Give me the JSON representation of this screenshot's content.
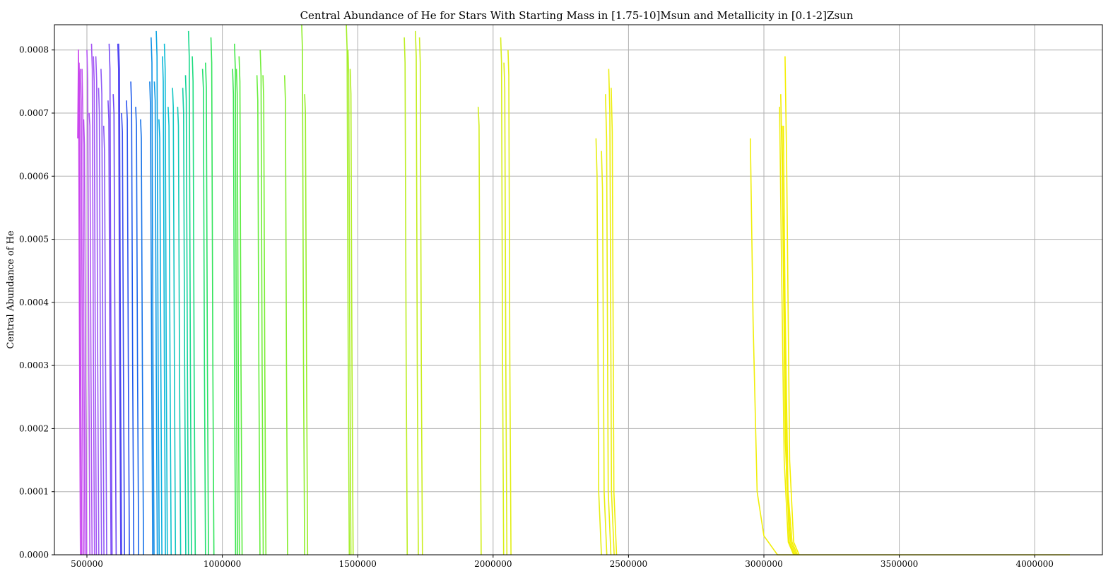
{
  "chart_data": {
    "type": "line",
    "title": "Central Abundance of He for Stars With Starting Mass in [1.75-10]Msun and Metallicity in [0.1-2]Zsun",
    "xlabel": "",
    "ylabel": "Central Abundance of He",
    "xlim": [
      380000,
      4250000
    ],
    "ylim": [
      0,
      0.00084
    ],
    "xticks": [
      500000,
      1000000,
      1500000,
      2000000,
      2500000,
      3000000,
      3500000,
      4000000
    ],
    "xtick_labels": [
      "500000",
      "1000000",
      "1500000",
      "2000000",
      "2500000",
      "3000000",
      "3500000",
      "4000000"
    ],
    "yticks": [
      0,
      0.0001,
      0.0002,
      0.0003,
      0.0004,
      0.0005,
      0.0006,
      0.0007,
      0.0008
    ],
    "ytick_labels": [
      "0.0000",
      "0.0001",
      "0.0002",
      "0.0003",
      "0.0004",
      "0.0005",
      "0.0006",
      "0.0007",
      "0.0008"
    ],
    "grid": true,
    "legend": "none",
    "colormap": "spring-to-yellow (magenta → blue → cyan → green → yellow)",
    "series": [
      {
        "color": "#cc44ee",
        "x": [
          466000,
          469000,
          472000,
          476000
        ],
        "y": [
          0.00066,
          0.0008,
          0.0004,
          0
        ]
      },
      {
        "color": "#c848ee",
        "x": [
          471000,
          473000,
          477000,
          481000
        ],
        "y": [
          0.00078,
          0.00074,
          0.0003,
          0
        ]
      },
      {
        "color": "#c44cf0",
        "x": [
          476000,
          479000,
          483000,
          487000
        ],
        "y": [
          0.00077,
          0.00072,
          0.0003,
          0
        ]
      },
      {
        "color": "#c050f0",
        "x": [
          482000,
          485000,
          489000,
          493000
        ],
        "y": [
          0.00077,
          0.0007,
          0.0003,
          0
        ]
      },
      {
        "color": "#bb52f2",
        "x": [
          488000,
          491000,
          495000,
          499000
        ],
        "y": [
          0.00069,
          0.00065,
          0.0003,
          0
        ]
      },
      {
        "color": "#b454f2",
        "x": [
          500000,
          503000,
          507000,
          511000
        ],
        "y": [
          0.0008,
          0.00075,
          0.0003,
          0
        ]
      },
      {
        "color": "#ae55f3",
        "x": [
          508000,
          511000,
          515000,
          519000
        ],
        "y": [
          0.0007,
          0.00068,
          0.0003,
          0
        ]
      },
      {
        "color": "#a756f4",
        "x": [
          517000,
          520000,
          524000,
          528000
        ],
        "y": [
          0.00081,
          0.00077,
          0.0003,
          0
        ]
      },
      {
        "color": "#a157f4",
        "x": [
          524000,
          527000,
          531000,
          535000
        ],
        "y": [
          0.00079,
          0.00075,
          0.0003,
          0
        ]
      },
      {
        "color": "#9b58f5",
        "x": [
          533000,
          536000,
          540000,
          544000
        ],
        "y": [
          0.00079,
          0.00075,
          0.0003,
          0
        ]
      },
      {
        "color": "#9559f5",
        "x": [
          543000,
          546000,
          550000,
          554000
        ],
        "y": [
          0.00074,
          0.0007,
          0.0003,
          0
        ]
      },
      {
        "color": "#8f5af6",
        "x": [
          552000,
          555000,
          559000,
          563000
        ],
        "y": [
          0.00077,
          0.00073,
          0.0003,
          0
        ]
      },
      {
        "color": "#8a58f6",
        "x": [
          562000,
          565000,
          569000,
          573000
        ],
        "y": [
          0.00068,
          0.00064,
          0.0003,
          0
        ]
      },
      {
        "color": "#8050f6",
        "x": [
          578000,
          581000,
          585000,
          589000
        ],
        "y": [
          0.00072,
          0.00069,
          0.0003,
          0
        ]
      },
      {
        "color": "#7a4cf6",
        "x": [
          582000,
          585000,
          589000,
          593000
        ],
        "y": [
          0.00081,
          0.00077,
          0.0003,
          0
        ]
      },
      {
        "color": "#6f48f6",
        "x": [
          597000,
          600000,
          604000,
          608000
        ],
        "y": [
          0.00073,
          0.0007,
          0.0003,
          0
        ]
      },
      {
        "color": "#5a46f4",
        "x": [
          614000,
          617000,
          621000,
          625000
        ],
        "y": [
          0.00081,
          0.00077,
          0.0003,
          0
        ]
      },
      {
        "color": "#4a46f2",
        "x": [
          617000,
          620000,
          624000,
          628000
        ],
        "y": [
          0.00081,
          0.00077,
          0.0003,
          0
        ]
      },
      {
        "color": "#3a4cf0",
        "x": [
          628000,
          631000,
          635000,
          639000
        ],
        "y": [
          0.0007,
          0.00067,
          0.0003,
          0
        ]
      },
      {
        "color": "#2a52ee",
        "x": [
          646000,
          649000,
          653000,
          657000
        ],
        "y": [
          0.00072,
          0.00069,
          0.0003,
          0
        ]
      },
      {
        "color": "#1e5aec",
        "x": [
          662000,
          665000,
          669000,
          673000
        ],
        "y": [
          0.00075,
          0.00071,
          0.0003,
          0
        ]
      },
      {
        "color": "#1a66ea",
        "x": [
          680000,
          683000,
          687000,
          691000
        ],
        "y": [
          0.00071,
          0.00068,
          0.0003,
          0
        ]
      },
      {
        "color": "#1672e8",
        "x": [
          698000,
          701000,
          705000,
          709000
        ],
        "y": [
          0.00069,
          0.00066,
          0.0003,
          0
        ]
      },
      {
        "color": "#1380e6",
        "x": [
          732000,
          735000,
          739000,
          743000
        ],
        "y": [
          0.00075,
          0.00071,
          0.0003,
          0
        ]
      },
      {
        "color": "#108ee6",
        "x": [
          737000,
          740000,
          744000,
          748000
        ],
        "y": [
          0.00082,
          0.00078,
          0.0003,
          0
        ]
      },
      {
        "color": "#0e9ae4",
        "x": [
          749000,
          752000,
          756000,
          760000
        ],
        "y": [
          0.00075,
          0.00072,
          0.0003,
          0
        ]
      },
      {
        "color": "#0ca4e2",
        "x": [
          756000,
          759000,
          763000,
          767000
        ],
        "y": [
          0.00083,
          0.00079,
          0.0003,
          0
        ]
      },
      {
        "color": "#0aaede",
        "x": [
          766000,
          769000,
          773000,
          777000
        ],
        "y": [
          0.00069,
          0.00066,
          0.0003,
          0
        ]
      },
      {
        "color": "#0ab6da",
        "x": [
          779000,
          782000,
          786000,
          790000
        ],
        "y": [
          0.00079,
          0.00075,
          0.0003,
          0
        ]
      },
      {
        "color": "#0cbcd4",
        "x": [
          786000,
          789000,
          793000,
          797000
        ],
        "y": [
          0.00081,
          0.00077,
          0.0003,
          0
        ]
      },
      {
        "color": "#0ec2cc",
        "x": [
          800000,
          803000,
          807000,
          811000
        ],
        "y": [
          0.00071,
          0.00068,
          0.0003,
          0
        ]
      },
      {
        "color": "#10c6c2",
        "x": [
          816000,
          819000,
          823000,
          827000
        ],
        "y": [
          0.00074,
          0.00071,
          0.0003,
          0
        ]
      },
      {
        "color": "#12cab6",
        "x": [
          835000,
          838000,
          842000,
          846000
        ],
        "y": [
          0.00071,
          0.00068,
          0.0003,
          0
        ]
      },
      {
        "color": "#14d0a8",
        "x": [
          854000,
          857000,
          861000,
          865000
        ],
        "y": [
          0.00074,
          0.0007,
          0.0003,
          0
        ]
      },
      {
        "color": "#16d49a",
        "x": [
          864000,
          867000,
          871000,
          875000
        ],
        "y": [
          0.00076,
          0.00072,
          0.0003,
          0
        ]
      },
      {
        "color": "#18d88c",
        "x": [
          875000,
          878000,
          882000,
          886000
        ],
        "y": [
          0.00083,
          0.00079,
          0.0003,
          0
        ]
      },
      {
        "color": "#1cdc7e",
        "x": [
          889000,
          892000,
          896000,
          900000
        ],
        "y": [
          0.00079,
          0.00075,
          0.0003,
          0
        ]
      },
      {
        "color": "#22e070",
        "x": [
          927000,
          930000,
          934000,
          938000
        ],
        "y": [
          0.00077,
          0.00074,
          0.0003,
          0
        ]
      },
      {
        "color": "#2ae264",
        "x": [
          938000,
          941000,
          945000,
          949000
        ],
        "y": [
          0.00078,
          0.00074,
          0.0003,
          0
        ]
      },
      {
        "color": "#32e45a",
        "x": [
          958000,
          961000,
          965000,
          969000
        ],
        "y": [
          0.00082,
          0.00078,
          0.0003,
          0
        ]
      },
      {
        "color": "#3ce652",
        "x": [
          1038000,
          1041000,
          1045000,
          1049000
        ],
        "y": [
          0.00077,
          0.00073,
          0.0003,
          0
        ]
      },
      {
        "color": "#46e84c",
        "x": [
          1045000,
          1048000,
          1052000,
          1056000
        ],
        "y": [
          0.00081,
          0.00077,
          0.0003,
          0
        ]
      },
      {
        "color": "#52ea46",
        "x": [
          1052000,
          1055000,
          1059000,
          1063000
        ],
        "y": [
          0.00077,
          0.00073,
          0.0003,
          0
        ]
      },
      {
        "color": "#5cec40",
        "x": [
          1062000,
          1065000,
          1069000,
          1073000
        ],
        "y": [
          0.00079,
          0.00075,
          0.0003,
          0
        ]
      },
      {
        "color": "#66ee3c",
        "x": [
          1128000,
          1131000,
          1135000,
          1139000
        ],
        "y": [
          0.00076,
          0.00072,
          0.0003,
          0
        ]
      },
      {
        "color": "#70ee38",
        "x": [
          1140000,
          1143000,
          1147000,
          1151000
        ],
        "y": [
          0.0008,
          0.00076,
          0.0003,
          0
        ]
      },
      {
        "color": "#7aee34",
        "x": [
          1150000,
          1153000,
          1157000,
          1161000
        ],
        "y": [
          0.00076,
          0.00072,
          0.0003,
          0
        ]
      },
      {
        "color": "#86ee30",
        "x": [
          1230000,
          1233000,
          1237000,
          1241000
        ],
        "y": [
          0.00076,
          0.00072,
          0.0003,
          0
        ]
      },
      {
        "color": "#90ee2c",
        "x": [
          1293000,
          1296000,
          1300000,
          1304000
        ],
        "y": [
          0.00084,
          0.0008,
          0.0003,
          0
        ]
      },
      {
        "color": "#98ee2a",
        "x": [
          1304000,
          1307000,
          1311000,
          1315000
        ],
        "y": [
          0.00073,
          0.0007,
          0.0003,
          0
        ]
      },
      {
        "color": "#a2ee28",
        "x": [
          1458000,
          1461000,
          1465000,
          1469000
        ],
        "y": [
          0.00084,
          0.0008,
          0.0003,
          0
        ]
      },
      {
        "color": "#aaee26",
        "x": [
          1464000,
          1467000,
          1471000,
          1475000
        ],
        "y": [
          0.0008,
          0.00076,
          0.0003,
          0
        ]
      },
      {
        "color": "#b2ee24",
        "x": [
          1472000,
          1475000,
          1479000,
          1483000
        ],
        "y": [
          0.00077,
          0.00073,
          0.0003,
          0
        ]
      },
      {
        "color": "#bcee22",
        "x": [
          1672000,
          1675000,
          1679000,
          1683000
        ],
        "y": [
          0.00082,
          0.00078,
          0.0003,
          0
        ]
      },
      {
        "color": "#c4ee20",
        "x": [
          1713000,
          1716000,
          1720000,
          1724000
        ],
        "y": [
          0.00083,
          0.00079,
          0.0003,
          0
        ]
      },
      {
        "color": "#cbee1e",
        "x": [
          1728000,
          1731000,
          1735000,
          1739000
        ],
        "y": [
          0.00082,
          0.00078,
          0.0003,
          0
        ]
      },
      {
        "color": "#d2ee1c",
        "x": [
          1945000,
          1948000,
          1952000,
          1956000
        ],
        "y": [
          0.00071,
          0.00068,
          0.0003,
          0
        ]
      },
      {
        "color": "#d8ee1a",
        "x": [
          2028000,
          2031000,
          2035000,
          2039000
        ],
        "y": [
          0.00082,
          0.00078,
          0.0003,
          0
        ]
      },
      {
        "color": "#deee18",
        "x": [
          2040000,
          2043000,
          2047000,
          2051000
        ],
        "y": [
          0.00078,
          0.00074,
          0.0003,
          0
        ]
      },
      {
        "color": "#e2ee16",
        "x": [
          2055000,
          2058000,
          2062000,
          2066000
        ],
        "y": [
          0.0008,
          0.00076,
          0.0003,
          0
        ]
      },
      {
        "color": "#e6ee14",
        "x": [
          2380000,
          2384000,
          2390000,
          2400000
        ],
        "y": [
          0.00066,
          0.0006,
          0.0001,
          0
        ]
      },
      {
        "color": "#e8ee12",
        "x": [
          2400000,
          2404000,
          2410000,
          2420000
        ],
        "y": [
          0.00064,
          0.00058,
          0.0001,
          0
        ]
      },
      {
        "color": "#eaee10",
        "x": [
          2415000,
          2419000,
          2425000,
          2435000
        ],
        "y": [
          0.00073,
          0.00066,
          0.0001,
          0
        ]
      },
      {
        "color": "#ecee0e",
        "x": [
          2427000,
          2431000,
          2437000,
          2447000
        ],
        "y": [
          0.00077,
          0.0007,
          0.0001,
          0
        ]
      },
      {
        "color": "#eeee0c",
        "x": [
          2436000,
          2440000,
          2446000,
          2456000
        ],
        "y": [
          0.00074,
          0.00067,
          0.0001,
          0
        ]
      },
      {
        "color": "#f0ee0a",
        "x": [
          2950000,
          2960000,
          2975000,
          3000000,
          3050000,
          4130000
        ],
        "y": [
          0.00066,
          0.00037,
          0.0001,
          3e-05,
          0,
          0
        ]
      },
      {
        "color": "#f0ee08",
        "x": [
          3058000,
          3064000,
          3075000,
          3090000,
          3110000
        ],
        "y": [
          0.00071,
          0.0005,
          0.00015,
          2e-05,
          0
        ]
      },
      {
        "color": "#f2ee06",
        "x": [
          3062000,
          3068000,
          3079000,
          3094000,
          3114000
        ],
        "y": [
          0.00073,
          0.0006,
          0.00018,
          2e-05,
          0
        ]
      },
      {
        "color": "#f2ee04",
        "x": [
          3067000,
          3073000,
          3084000,
          3099000,
          3119000
        ],
        "y": [
          0.00068,
          0.00045,
          0.00012,
          2e-05,
          0
        ]
      },
      {
        "color": "#f4ee02",
        "x": [
          3072000,
          3078000,
          3089000,
          3104000,
          3124000
        ],
        "y": [
          0.00068,
          0.0004,
          0.0001,
          2e-05,
          0
        ]
      },
      {
        "color": "#f4ee00",
        "x": [
          3078000,
          3084000,
          3095000,
          3110000,
          3130000
        ],
        "y": [
          0.00079,
          0.00062,
          0.00015,
          2e-05,
          0
        ]
      }
    ]
  }
}
